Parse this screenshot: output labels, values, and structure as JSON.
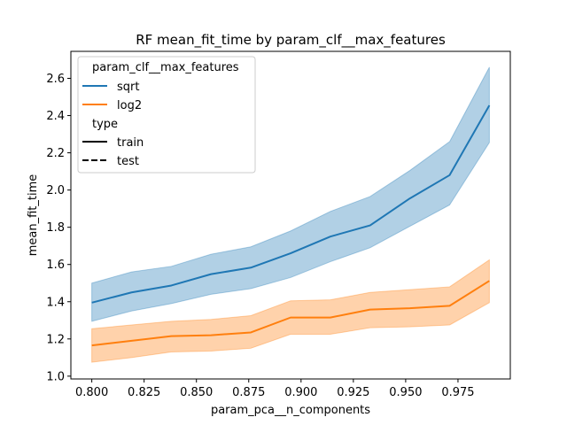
{
  "chart_data": {
    "type": "line",
    "title": "RF mean_fit_time by param_clf__max_features",
    "xlabel": "param_pca__n_components",
    "ylabel": "mean_fit_time",
    "xlim": [
      0.79,
      1.0
    ],
    "ylim": [
      0.985,
      2.745
    ],
    "xticks": [
      "0.800",
      "0.825",
      "0.850",
      "0.875",
      "0.900",
      "0.925",
      "0.950",
      "0.975"
    ],
    "xtick_values": [
      0.8,
      0.825,
      0.85,
      0.875,
      0.9,
      0.925,
      0.95,
      0.975
    ],
    "yticks": [
      "1.0",
      "1.2",
      "1.4",
      "1.6",
      "1.8",
      "2.0",
      "2.2",
      "2.4",
      "2.6"
    ],
    "ytick_values": [
      1.0,
      1.2,
      1.4,
      1.6,
      1.8,
      2.0,
      2.2,
      2.4,
      2.6
    ],
    "x": [
      0.8,
      0.819,
      0.838,
      0.857,
      0.876,
      0.895,
      0.914,
      0.933,
      0.952,
      0.971,
      0.99
    ],
    "series": [
      {
        "name": "sqrt",
        "color": "#1f77b4",
        "values": [
          1.395,
          1.45,
          1.487,
          1.548,
          1.583,
          1.66,
          1.75,
          1.81,
          1.955,
          2.08,
          2.455
        ],
        "upper": [
          1.5,
          1.56,
          1.59,
          1.655,
          1.695,
          1.78,
          1.885,
          1.965,
          2.105,
          2.26,
          2.66
        ],
        "lower": [
          1.295,
          1.35,
          1.39,
          1.44,
          1.47,
          1.53,
          1.615,
          1.69,
          1.805,
          1.92,
          2.255
        ]
      },
      {
        "name": "log2",
        "color": "#ff7f0e",
        "values": [
          1.165,
          1.19,
          1.215,
          1.22,
          1.235,
          1.315,
          1.315,
          1.358,
          1.365,
          1.378,
          1.512
        ],
        "upper": [
          1.255,
          1.275,
          1.295,
          1.305,
          1.325,
          1.405,
          1.41,
          1.45,
          1.465,
          1.48,
          1.625
        ],
        "lower": [
          1.075,
          1.1,
          1.13,
          1.135,
          1.15,
          1.225,
          1.225,
          1.26,
          1.265,
          1.275,
          1.395
        ]
      }
    ],
    "legend": {
      "position": "upper-left",
      "title": "param_clf__max_features",
      "entries": [
        {
          "label": "sqrt",
          "color": "#1f77b4",
          "style": "solid"
        },
        {
          "label": "log2",
          "color": "#ff7f0e",
          "style": "solid"
        }
      ],
      "style_title": "type",
      "style_entries": [
        {
          "label": "train",
          "color": "#000000",
          "style": "solid"
        },
        {
          "label": "test",
          "color": "#000000",
          "style": "dashed"
        }
      ]
    }
  }
}
